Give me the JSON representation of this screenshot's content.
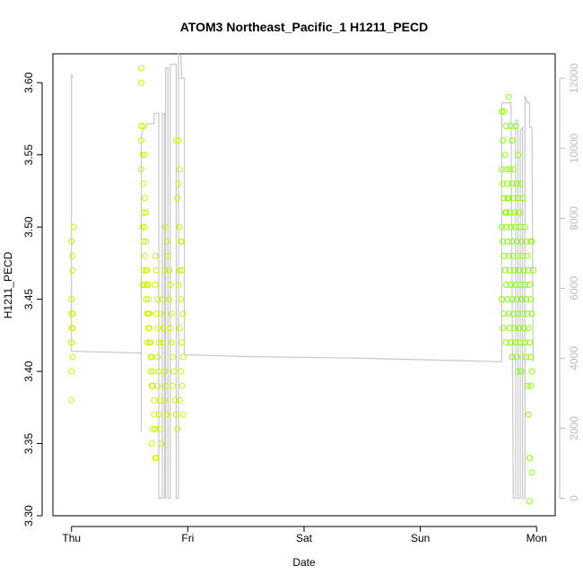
{
  "chart_data": {
    "type": "scatter",
    "title": "ATOM3 Northeast_Pacific_1 H1211_PECD",
    "xlabel": "Date",
    "ylabel": "H1211_PECD",
    "x_ticks": [
      "Thu",
      "Fri",
      "Sat",
      "Sun",
      "Mon"
    ],
    "xlim": [
      -0.16,
      4.16
    ],
    "ylim": [
      3.3,
      3.62
    ],
    "y_ticks": [
      "3.30",
      "3.35",
      "3.40",
      "3.45",
      "3.50",
      "3.55",
      "3.60"
    ],
    "y2lim": [
      -500,
      12700
    ],
    "y2_ticks": [
      "0",
      "2000",
      "4000",
      "6000",
      "8000",
      "10000",
      "12000"
    ],
    "grid": false,
    "colors": {
      "points_early": "#d4f000",
      "points_late": "#88ff00",
      "altitude_line": "#c8c8c8",
      "axis": "#000000",
      "right_axis": "#bdbdbd"
    },
    "series": [
      {
        "points": [
          [
            0.0,
            3.49
          ],
          [
            0.0,
            3.49
          ],
          [
            0.01,
            3.47
          ],
          [
            0.0,
            3.45
          ],
          [
            0.0,
            3.44
          ],
          [
            0.01,
            3.44
          ],
          [
            0.0,
            3.43
          ],
          [
            0.01,
            3.43
          ],
          [
            0.0,
            3.42
          ],
          [
            0.0,
            3.42
          ],
          [
            0.01,
            3.41
          ],
          [
            0.0,
            3.4
          ],
          [
            0.0,
            3.38
          ],
          [
            0.02,
            3.5
          ],
          [
            0.01,
            3.48
          ],
          [
            0.6,
            3.61
          ],
          [
            0.6,
            3.6
          ],
          [
            0.6,
            3.57
          ],
          [
            0.62,
            3.57
          ],
          [
            0.6,
            3.56
          ],
          [
            0.61,
            3.55
          ],
          [
            0.63,
            3.55
          ],
          [
            0.6,
            3.54
          ],
          [
            0.62,
            3.53
          ],
          [
            0.63,
            3.52
          ],
          [
            0.62,
            3.51
          ],
          [
            0.64,
            3.51
          ],
          [
            0.61,
            3.5
          ],
          [
            0.63,
            3.5
          ],
          [
            0.62,
            3.49
          ],
          [
            0.64,
            3.49
          ],
          [
            0.63,
            3.48
          ],
          [
            0.62,
            3.47
          ],
          [
            0.64,
            3.47
          ],
          [
            0.65,
            3.47
          ],
          [
            0.61,
            3.46
          ],
          [
            0.63,
            3.46
          ],
          [
            0.65,
            3.46
          ],
          [
            0.66,
            3.46
          ],
          [
            0.64,
            3.45
          ],
          [
            0.66,
            3.45
          ],
          [
            0.65,
            3.44
          ],
          [
            0.66,
            3.44
          ],
          [
            0.67,
            3.44
          ],
          [
            0.66,
            3.43
          ],
          [
            0.67,
            3.43
          ],
          [
            0.65,
            3.42
          ],
          [
            0.67,
            3.42
          ],
          [
            0.68,
            3.42
          ],
          [
            0.68,
            3.41
          ],
          [
            0.69,
            3.41
          ],
          [
            0.68,
            3.4
          ],
          [
            0.7,
            3.4
          ],
          [
            0.69,
            3.39
          ],
          [
            0.7,
            3.39
          ],
          [
            0.71,
            3.38
          ],
          [
            0.71,
            3.37
          ],
          [
            0.7,
            3.36
          ],
          [
            0.72,
            3.36
          ],
          [
            0.69,
            3.35
          ],
          [
            0.72,
            3.34
          ],
          [
            0.73,
            3.34
          ],
          [
            0.72,
            3.48
          ],
          [
            0.73,
            3.47
          ],
          [
            0.72,
            3.46
          ],
          [
            0.74,
            3.45
          ],
          [
            0.73,
            3.44
          ],
          [
            0.74,
            3.43
          ],
          [
            0.75,
            3.42
          ],
          [
            0.74,
            3.41
          ],
          [
            0.75,
            3.4
          ],
          [
            0.74,
            3.39
          ],
          [
            0.76,
            3.38
          ],
          [
            0.75,
            3.37
          ],
          [
            0.76,
            3.36
          ],
          [
            0.77,
            3.35
          ],
          [
            0.78,
            3.45
          ],
          [
            0.77,
            3.44
          ],
          [
            0.79,
            3.43
          ],
          [
            0.78,
            3.42
          ],
          [
            0.8,
            3.4
          ],
          [
            0.81,
            3.39
          ],
          [
            0.8,
            3.38
          ],
          [
            0.82,
            3.37
          ],
          [
            0.8,
            3.47
          ],
          [
            0.81,
            3.5
          ],
          [
            0.82,
            3.49
          ],
          [
            0.83,
            3.48
          ],
          [
            0.84,
            3.47
          ],
          [
            0.85,
            3.46
          ],
          [
            0.84,
            3.45
          ],
          [
            0.86,
            3.44
          ],
          [
            0.85,
            3.43
          ],
          [
            0.86,
            3.42
          ],
          [
            0.87,
            3.41
          ],
          [
            0.88,
            3.4
          ],
          [
            0.87,
            3.39
          ],
          [
            0.89,
            3.38
          ],
          [
            0.9,
            3.37
          ],
          [
            0.91,
            3.36
          ],
          [
            0.9,
            3.56
          ],
          [
            0.92,
            3.56
          ],
          [
            0.93,
            3.54
          ],
          [
            0.92,
            3.53
          ],
          [
            0.91,
            3.52
          ],
          [
            0.93,
            3.5
          ],
          [
            0.94,
            3.49
          ],
          [
            0.95,
            3.49
          ],
          [
            0.93,
            3.47
          ],
          [
            0.95,
            3.47
          ],
          [
            0.92,
            3.46
          ],
          [
            0.94,
            3.45
          ],
          [
            0.96,
            3.44
          ],
          [
            0.93,
            3.43
          ],
          [
            0.95,
            3.42
          ],
          [
            0.96,
            3.41
          ],
          [
            0.94,
            3.4
          ],
          [
            0.95,
            3.39
          ],
          [
            0.93,
            3.38
          ],
          [
            0.96,
            3.37
          ]
        ]
      },
      {
        "points": [
          [
            3.7,
            3.58
          ],
          [
            3.72,
            3.58
          ],
          [
            3.74,
            3.57
          ],
          [
            3.71,
            3.56
          ],
          [
            3.73,
            3.55
          ],
          [
            3.76,
            3.59
          ],
          [
            3.78,
            3.57
          ],
          [
            3.7,
            3.54
          ],
          [
            3.74,
            3.54
          ],
          [
            3.77,
            3.54
          ],
          [
            3.8,
            3.54
          ],
          [
            3.71,
            3.53
          ],
          [
            3.75,
            3.53
          ],
          [
            3.79,
            3.53
          ],
          [
            3.83,
            3.53
          ],
          [
            3.72,
            3.52
          ],
          [
            3.76,
            3.52
          ],
          [
            3.8,
            3.52
          ],
          [
            3.84,
            3.52
          ],
          [
            3.88,
            3.52
          ],
          [
            3.73,
            3.51
          ],
          [
            3.77,
            3.51
          ],
          [
            3.81,
            3.51
          ],
          [
            3.85,
            3.51
          ],
          [
            3.7,
            3.5
          ],
          [
            3.74,
            3.5
          ],
          [
            3.78,
            3.5
          ],
          [
            3.82,
            3.5
          ],
          [
            3.86,
            3.5
          ],
          [
            3.9,
            3.5
          ],
          [
            3.71,
            3.49
          ],
          [
            3.75,
            3.49
          ],
          [
            3.79,
            3.49
          ],
          [
            3.83,
            3.49
          ],
          [
            3.87,
            3.49
          ],
          [
            3.91,
            3.49
          ],
          [
            3.95,
            3.49
          ],
          [
            3.72,
            3.48
          ],
          [
            3.76,
            3.48
          ],
          [
            3.8,
            3.48
          ],
          [
            3.84,
            3.48
          ],
          [
            3.88,
            3.48
          ],
          [
            3.92,
            3.48
          ],
          [
            3.73,
            3.47
          ],
          [
            3.77,
            3.47
          ],
          [
            3.81,
            3.47
          ],
          [
            3.85,
            3.47
          ],
          [
            3.89,
            3.47
          ],
          [
            3.93,
            3.47
          ],
          [
            3.97,
            3.47
          ],
          [
            3.74,
            3.46
          ],
          [
            3.78,
            3.46
          ],
          [
            3.82,
            3.46
          ],
          [
            3.86,
            3.46
          ],
          [
            3.9,
            3.46
          ],
          [
            3.94,
            3.46
          ],
          [
            3.7,
            3.45
          ],
          [
            3.75,
            3.45
          ],
          [
            3.79,
            3.45
          ],
          [
            3.83,
            3.45
          ],
          [
            3.87,
            3.45
          ],
          [
            3.91,
            3.45
          ],
          [
            3.95,
            3.45
          ],
          [
            3.72,
            3.44
          ],
          [
            3.76,
            3.44
          ],
          [
            3.8,
            3.44
          ],
          [
            3.84,
            3.44
          ],
          [
            3.88,
            3.44
          ],
          [
            3.92,
            3.44
          ],
          [
            3.96,
            3.44
          ],
          [
            3.71,
            3.43
          ],
          [
            3.77,
            3.43
          ],
          [
            3.81,
            3.43
          ],
          [
            3.85,
            3.43
          ],
          [
            3.89,
            3.43
          ],
          [
            3.93,
            3.43
          ],
          [
            3.74,
            3.42
          ],
          [
            3.78,
            3.42
          ],
          [
            3.82,
            3.42
          ],
          [
            3.86,
            3.42
          ],
          [
            3.9,
            3.42
          ],
          [
            3.94,
            3.42
          ],
          [
            3.79,
            3.41
          ],
          [
            3.83,
            3.41
          ],
          [
            3.91,
            3.41
          ],
          [
            3.95,
            3.41
          ],
          [
            3.84,
            3.4
          ],
          [
            3.87,
            3.4
          ],
          [
            3.96,
            3.4
          ],
          [
            3.92,
            3.39
          ],
          [
            3.95,
            3.39
          ],
          [
            3.93,
            3.37
          ],
          [
            3.94,
            3.34
          ],
          [
            3.96,
            3.33
          ],
          [
            3.94,
            3.31
          ],
          [
            3.82,
            3.57
          ],
          [
            3.79,
            3.56
          ],
          [
            3.84,
            3.55
          ],
          [
            3.86,
            3.53
          ],
          [
            3.96,
            3.49
          ],
          [
            3.75,
            3.52
          ],
          [
            3.74,
            3.51
          ]
        ]
      }
    ],
    "altitude_line": {
      "axis": "right",
      "points": [
        [
          0.0,
          12000
        ],
        [
          0.01,
          12050
        ],
        [
          0.0,
          12100
        ],
        [
          0.0,
          4200
        ],
        [
          0.6,
          4150
        ],
        [
          0.6,
          6200
        ],
        [
          0.6,
          6200
        ],
        [
          0.6,
          1900
        ],
        [
          0.6,
          10300
        ],
        [
          0.61,
          10500
        ],
        [
          0.66,
          10700
        ],
        [
          0.71,
          10700
        ],
        [
          0.71,
          11000
        ],
        [
          0.75,
          11000
        ],
        [
          0.75,
          0
        ],
        [
          0.78,
          0
        ],
        [
          0.78,
          11000
        ],
        [
          0.8,
          11000
        ],
        [
          0.8,
          0
        ],
        [
          0.81,
          0
        ],
        [
          0.81,
          12300
        ],
        [
          0.83,
          12300
        ],
        [
          0.83,
          0
        ],
        [
          0.85,
          0
        ],
        [
          0.85,
          12400
        ],
        [
          0.9,
          12400
        ],
        [
          0.9,
          0
        ],
        [
          0.92,
          0
        ],
        [
          0.92,
          12700
        ],
        [
          0.94,
          12650
        ],
        [
          0.95,
          12000
        ],
        [
          0.91,
          12000
        ],
        [
          0.97,
          12000
        ],
        [
          0.97,
          4100
        ],
        [
          1.5,
          4050
        ],
        [
          2.5,
          4000
        ],
        [
          3.7,
          3900
        ],
        [
          3.7,
          11300
        ],
        [
          3.78,
          11300
        ],
        [
          3.8,
          0
        ],
        [
          3.82,
          0
        ],
        [
          3.82,
          10800
        ],
        [
          3.84,
          10800
        ],
        [
          3.84,
          0
        ],
        [
          3.86,
          0
        ],
        [
          3.86,
          10500
        ],
        [
          3.88,
          10600
        ],
        [
          3.88,
          0
        ],
        [
          3.9,
          0
        ],
        [
          3.9,
          11500
        ],
        [
          3.92,
          11300
        ],
        [
          3.94,
          11300
        ],
        [
          3.94,
          10600
        ],
        [
          3.96,
          10600
        ],
        [
          3.97,
          3900
        ]
      ]
    }
  }
}
